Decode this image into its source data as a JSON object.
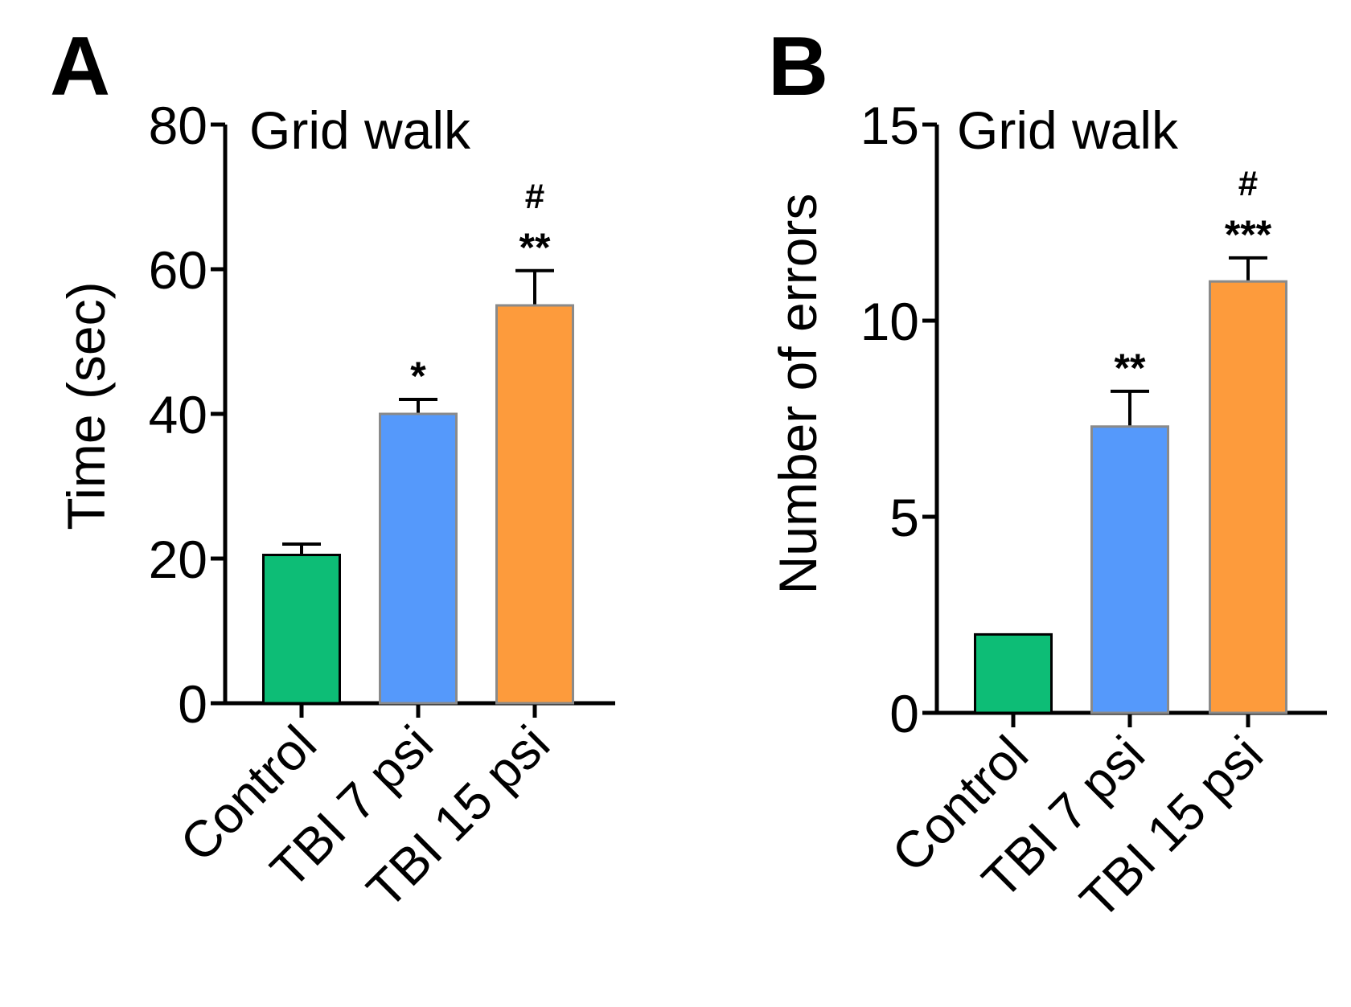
{
  "chart_data": [
    {
      "panel": "A",
      "type": "bar",
      "title": "Grid walk",
      "xlabel": "",
      "ylabel": "Time (sec)",
      "ylim": [
        0,
        80
      ],
      "yticks": [
        0,
        20,
        40,
        60,
        80
      ],
      "categories": [
        "Control",
        "TBI 7 psi",
        "TBI 15 psi"
      ],
      "values": [
        20.5,
        40,
        55
      ],
      "errors": [
        1.5,
        2,
        4.8
      ],
      "significance": [
        "",
        "*",
        "**"
      ],
      "hash": [
        "",
        "",
        "#"
      ],
      "colors": [
        "#0dbd76",
        "#5599fb",
        "#fd9b3c"
      ],
      "grid": false,
      "legend": "none"
    },
    {
      "panel": "B",
      "type": "bar",
      "title": "Grid walk",
      "xlabel": "",
      "ylabel": "Number of errors",
      "ylim": [
        0,
        15
      ],
      "yticks": [
        0,
        5,
        10,
        15
      ],
      "categories": [
        "Control",
        "TBI 7 psi",
        "TBI 15 psi"
      ],
      "values": [
        2,
        7.3,
        11
      ],
      "errors": [
        0,
        0.9,
        0.6
      ],
      "significance": [
        "",
        "**",
        "***"
      ],
      "hash": [
        "",
        "",
        "#"
      ],
      "colors": [
        "#0dbd76",
        "#5599fb",
        "#fd9b3c"
      ],
      "grid": false,
      "legend": "none"
    }
  ]
}
